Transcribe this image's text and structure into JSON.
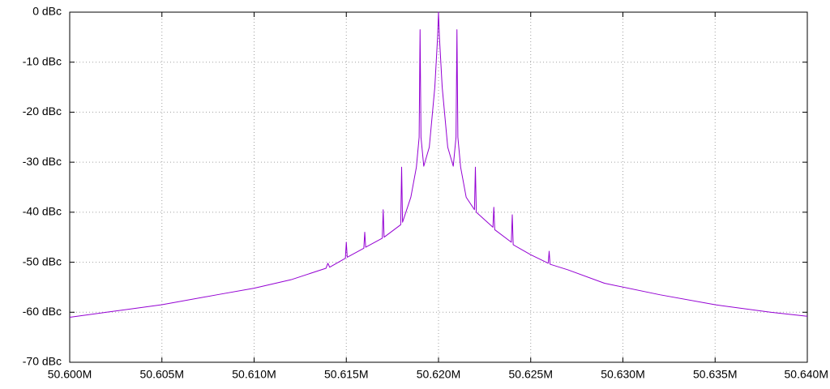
{
  "chart_data": {
    "type": "line",
    "x": [
      50600000,
      50602000,
      50605000,
      50608000,
      50610000,
      50612000,
      50613900,
      50614000,
      50614100,
      50614950,
      50615000,
      50615050,
      50615950,
      50616000,
      50616050,
      50616950,
      50617000,
      50617050,
      50617950,
      50618000,
      50618050,
      50618500,
      50618800,
      50618950,
      50619000,
      50619050,
      50619200,
      50619500,
      50619800,
      50619950,
      50620000,
      50620050,
      50620200,
      50620500,
      50620800,
      50620950,
      50621000,
      50621050,
      50621200,
      50621500,
      50621950,
      50622000,
      50622050,
      50622950,
      50623000,
      50623050,
      50623950,
      50624000,
      50624050,
      50625000,
      50625950,
      50626000,
      50626050,
      50627000,
      50629000,
      50632000,
      50635000,
      50638000,
      50640000
    ],
    "series": [
      {
        "color": "#9400d3",
        "values": [
          -61,
          -60,
          -58.5,
          -56.5,
          -55.2,
          -53.5,
          -51.2,
          -50.2,
          -51,
          -49.2,
          -46,
          -49,
          -47.2,
          -44,
          -47,
          -45.2,
          -39.5,
          -45,
          -42.5,
          -31,
          -42,
          -37,
          -31,
          -25,
          -3.5,
          -25,
          -30.8,
          -27,
          -15,
          -5,
          0,
          -5,
          -15,
          -27,
          -30.8,
          -25,
          -3.5,
          -25,
          -31,
          -37,
          -39.5,
          -31,
          -40,
          -43,
          -39,
          -43.5,
          -46,
          -40.5,
          -46.5,
          -48.5,
          -50.2,
          -47.8,
          -50.4,
          -51.5,
          -54.2,
          -56.5,
          -58.5,
          -60,
          -60.8
        ]
      }
    ],
    "xlim": [
      50600000,
      50640000
    ],
    "xticks": [
      {
        "value": 50600000,
        "label": "50.600M"
      },
      {
        "value": 50605000,
        "label": "50.605M"
      },
      {
        "value": 50610000,
        "label": "50.610M"
      },
      {
        "value": 50615000,
        "label": "50.615M"
      },
      {
        "value": 50620000,
        "label": "50.620M"
      },
      {
        "value": 50625000,
        "label": "50.625M"
      },
      {
        "value": 50630000,
        "label": "50.630M"
      },
      {
        "value": 50635000,
        "label": "50.635M"
      },
      {
        "value": 50640000,
        "label": "50.640M"
      }
    ],
    "ylim": [
      -70,
      0
    ],
    "yticks": [
      {
        "value": 0,
        "label": "0 dBc"
      },
      {
        "value": -10,
        "label": "-10 dBc"
      },
      {
        "value": -20,
        "label": "-20 dBc"
      },
      {
        "value": -30,
        "label": "-30 dBc"
      },
      {
        "value": -40,
        "label": "-40 dBc"
      },
      {
        "value": -50,
        "label": "-50 dBc"
      },
      {
        "value": -60,
        "label": "-60 dBc"
      },
      {
        "value": -70,
        "label": "-70 dBc"
      }
    ],
    "grid": true
  }
}
